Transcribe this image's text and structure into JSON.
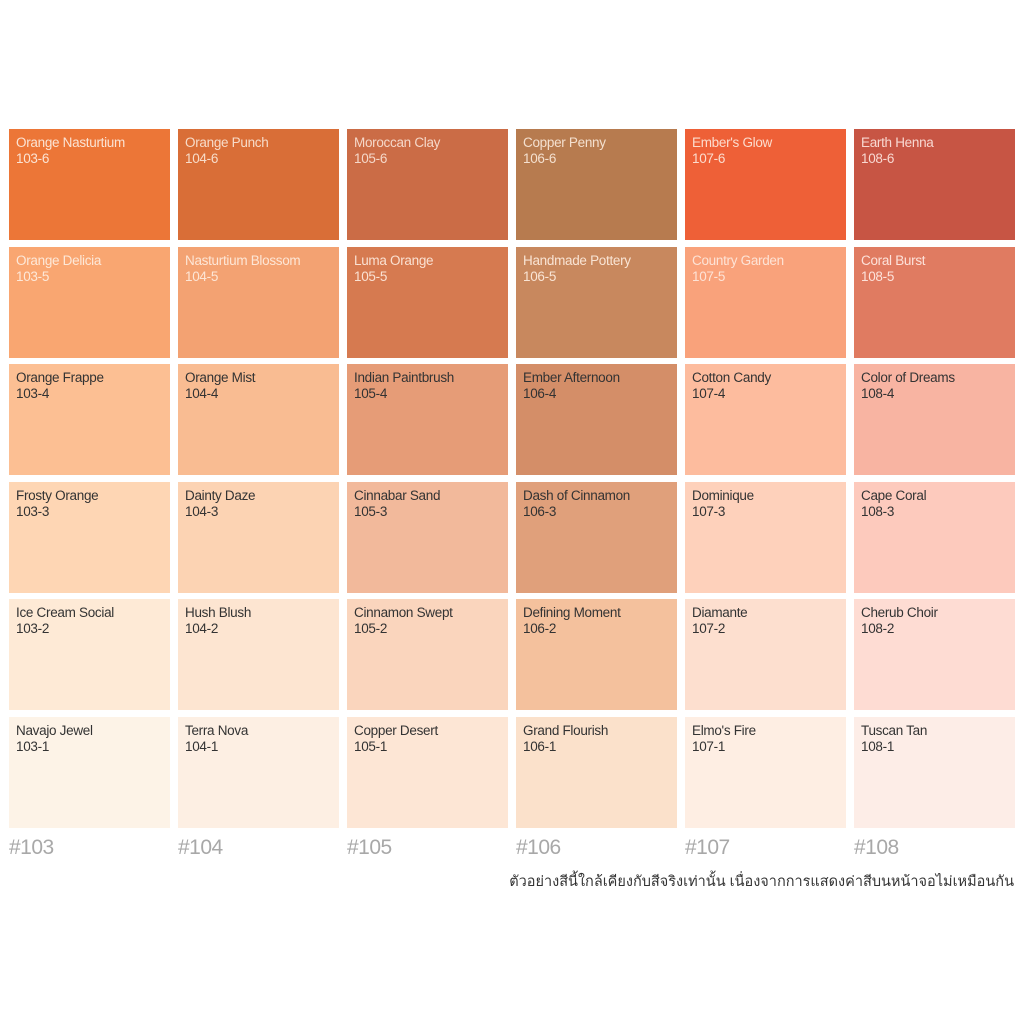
{
  "rows": [
    [
      {
        "name": "Orange Nasturtium",
        "code": "103-6",
        "color": "#ec7637",
        "text_color": "#fbe3d3"
      },
      {
        "name": "Orange Punch",
        "code": "104-6",
        "color": "#d96e37",
        "text_color": "#f7dcc9"
      },
      {
        "name": "Moroccan Clay",
        "code": "105-6",
        "color": "#cb6c46",
        "text_color": "#f5d8c9"
      },
      {
        "name": "Copper Penny",
        "code": "106-6",
        "color": "#b77b4f",
        "text_color": "#f4e0cf"
      },
      {
        "name": "Ember's Glow",
        "code": "107-6",
        "color": "#ee6037",
        "text_color": "#fcdccd"
      },
      {
        "name": "Earth Henna",
        "code": "108-6",
        "color": "#c75544",
        "text_color": "#f8d8d1"
      }
    ],
    [
      {
        "name": "Orange Delicia",
        "code": "103-5",
        "color": "#f9a671",
        "text_color": "#fde8d8"
      },
      {
        "name": "Nasturtium Blossom",
        "code": "104-5",
        "color": "#f3a272",
        "text_color": "#fde6d6"
      },
      {
        "name": "Luma Orange",
        "code": "105-5",
        "color": "#d67a50",
        "text_color": "#fae1d2"
      },
      {
        "name": "Handmade Pottery",
        "code": "106-5",
        "color": "#c8885e",
        "text_color": "#f9e4d4"
      },
      {
        "name": "Country Garden",
        "code": "107-5",
        "color": "#f9a27b",
        "text_color": "#fde3d6"
      },
      {
        "name": "Coral Burst",
        "code": "108-5",
        "color": "#e07b61",
        "text_color": "#fde2da"
      }
    ],
    [
      {
        "name": "Orange Frappe",
        "code": "103-4",
        "color": "#fcbf93",
        "text_color": "#333333"
      },
      {
        "name": "Orange Mist",
        "code": "104-4",
        "color": "#f9bc92",
        "text_color": "#333333"
      },
      {
        "name": "Indian Paintbrush",
        "code": "105-4",
        "color": "#e69c77",
        "text_color": "#333333"
      },
      {
        "name": "Ember Afternoon",
        "code": "106-4",
        "color": "#d48e68",
        "text_color": "#333333"
      },
      {
        "name": "Cotton Candy",
        "code": "107-4",
        "color": "#fdbc9e",
        "text_color": "#333333"
      },
      {
        "name": "Color of Dreams",
        "code": "108-4",
        "color": "#f8b4a2",
        "text_color": "#333333"
      }
    ],
    [
      {
        "name": "Frosty Orange",
        "code": "103-3",
        "color": "#fed6b4",
        "text_color": "#333333"
      },
      {
        "name": "Dainty Daze",
        "code": "104-3",
        "color": "#fcd3b3",
        "text_color": "#333333"
      },
      {
        "name": "Cinnabar Sand",
        "code": "105-3",
        "color": "#f2b99b",
        "text_color": "#333333"
      },
      {
        "name": "Dash of Cinnamon",
        "code": "106-3",
        "color": "#e0a07b",
        "text_color": "#333333"
      },
      {
        "name": "Dominique",
        "code": "107-3",
        "color": "#fed1bb",
        "text_color": "#333333"
      },
      {
        "name": "Cape Coral",
        "code": "108-3",
        "color": "#fdcabd",
        "text_color": "#333333"
      }
    ],
    [
      {
        "name": "Ice Cream Social",
        "code": "103-2",
        "color": "#feead6",
        "text_color": "#333333"
      },
      {
        "name": "Hush Blush",
        "code": "104-2",
        "color": "#fde5d1",
        "text_color": "#333333"
      },
      {
        "name": "Cinnamon Swept",
        "code": "105-2",
        "color": "#fad5bd",
        "text_color": "#333333"
      },
      {
        "name": "Defining Moment",
        "code": "106-2",
        "color": "#f4c19d",
        "text_color": "#333333"
      },
      {
        "name": "Diamante",
        "code": "107-2",
        "color": "#fddfcf",
        "text_color": "#333333"
      },
      {
        "name": "Cherub Choir",
        "code": "108-2",
        "color": "#fedcd3",
        "text_color": "#333333"
      }
    ],
    [
      {
        "name": "Navajo Jewel",
        "code": "103-1",
        "color": "#fdf3e7",
        "text_color": "#333333"
      },
      {
        "name": "Terra Nova",
        "code": "104-1",
        "color": "#fdefe3",
        "text_color": "#333333"
      },
      {
        "name": "Copper Desert",
        "code": "105-1",
        "color": "#fde6d5",
        "text_color": "#333333"
      },
      {
        "name": "Grand Flourish",
        "code": "106-1",
        "color": "#fbe1cb",
        "text_color": "#333333"
      },
      {
        "name": "Elmo's Fire",
        "code": "107-1",
        "color": "#feeee3",
        "text_color": "#333333"
      },
      {
        "name": "Tuscan Tan",
        "code": "108-1",
        "color": "#fdede7",
        "text_color": "#333333"
      }
    ]
  ],
  "column_labels": [
    "#103",
    "#104",
    "#105",
    "#106",
    "#107",
    "#108"
  ],
  "note": "ตัวอย่างสีนี้ใกล้เคียงกับสีจริงเท่านั้น เนื่องจากการแสดงค่าสีบนหน้าจอไม่เหมือนกัน"
}
